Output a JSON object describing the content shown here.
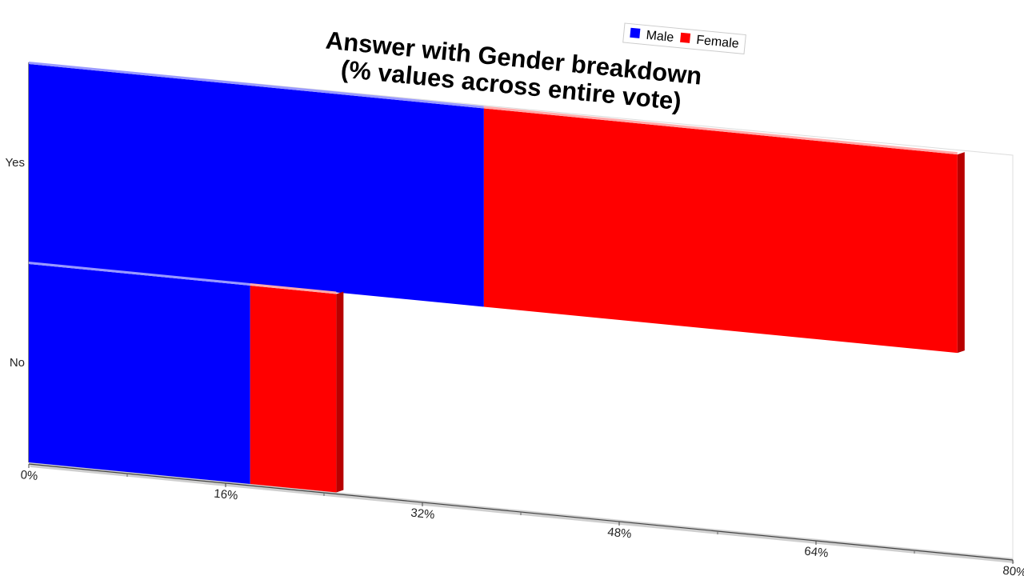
{
  "chart_data": {
    "type": "bar",
    "orientation": "horizontal",
    "stacked": true,
    "title": "Answer with Gender breakdown\n(% values across entire vote)",
    "categories": [
      "Yes",
      "No"
    ],
    "series": [
      {
        "name": "Male",
        "values": [
          37,
          18
        ],
        "color": "#0000ff"
      },
      {
        "name": "Female",
        "values": [
          38.5,
          7
        ],
        "color": "#ff0000"
      }
    ],
    "xlim": [
      0,
      80
    ],
    "x_ticks": [
      "0%",
      "16%",
      "32%",
      "48%",
      "64%",
      "80%"
    ],
    "legend_position": "top-right",
    "grid": false
  }
}
